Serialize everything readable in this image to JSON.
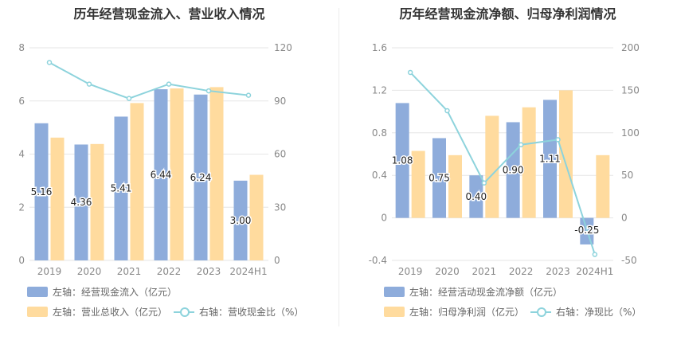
{
  "colors": {
    "blue": "#8eacdb",
    "orange": "#ffdb9e",
    "line": "#8dd3dc",
    "grid": "#e6e6e6",
    "axis_text": "#888888"
  },
  "chart_data": [
    {
      "type": "bar",
      "title": "历年经营现金流入、营业收入情况",
      "categories": [
        "2019",
        "2020",
        "2021",
        "2022",
        "2023",
        "2024H1"
      ],
      "y_left": {
        "min": 0,
        "max": 8,
        "ticks": [
          "0",
          "2",
          "4",
          "6",
          "8"
        ]
      },
      "y_right": {
        "min": 0,
        "max": 120,
        "ticks": [
          "0",
          "30",
          "60",
          "90",
          "120"
        ]
      },
      "series": [
        {
          "name": "左轴：经营现金流入（亿元）",
          "axis": "left",
          "kind": "bar",
          "color": "#8eacdb",
          "values": [
            5.16,
            4.36,
            5.41,
            6.44,
            6.24,
            3.0
          ],
          "labels": [
            "5.16",
            "4.36",
            "5.41",
            "6.44",
            "6.24",
            "3.00"
          ]
        },
        {
          "name": "左轴：营业总收入（亿元）",
          "axis": "left",
          "kind": "bar",
          "color": "#ffdb9e",
          "values": [
            4.62,
            4.38,
            5.92,
            6.47,
            6.52,
            3.22
          ]
        },
        {
          "name": "右轴：营收现金比（%）",
          "axis": "right",
          "kind": "line",
          "color": "#8dd3dc",
          "values": [
            111.7,
            99.5,
            91.4,
            99.5,
            95.7,
            93.2
          ]
        }
      ],
      "legend": "bottom"
    },
    {
      "type": "bar",
      "title": "历年经营现金流净额、归母净利润情况",
      "categories": [
        "2019",
        "2020",
        "2021",
        "2022",
        "2023",
        "2024H1"
      ],
      "y_left": {
        "min": -0.4,
        "max": 1.6,
        "ticks": [
          "-0.4",
          "0",
          "0.4",
          "0.8",
          "1.2",
          "1.6"
        ]
      },
      "y_right": {
        "min": -50,
        "max": 200,
        "ticks": [
          "-50",
          "0",
          "50",
          "100",
          "150",
          "200"
        ]
      },
      "series": [
        {
          "name": "左轴：经营活动现金流净额（亿元）",
          "axis": "left",
          "kind": "bar",
          "color": "#8eacdb",
          "values": [
            1.08,
            0.75,
            0.4,
            0.9,
            1.11,
            -0.25
          ],
          "labels": [
            "1.08",
            "0.75",
            "0.40",
            "0.90",
            "1.11",
            "-0.25"
          ]
        },
        {
          "name": "左轴：归母净利润（亿元）",
          "axis": "left",
          "kind": "bar",
          "color": "#ffdb9e",
          "values": [
            0.63,
            0.59,
            0.96,
            1.04,
            1.2,
            0.59
          ]
        },
        {
          "name": "右轴：净现比（%）",
          "axis": "right",
          "kind": "line",
          "color": "#8dd3dc",
          "values": [
            171,
            126,
            41,
            86,
            92,
            -43
          ]
        }
      ],
      "legend": "bottom"
    }
  ]
}
